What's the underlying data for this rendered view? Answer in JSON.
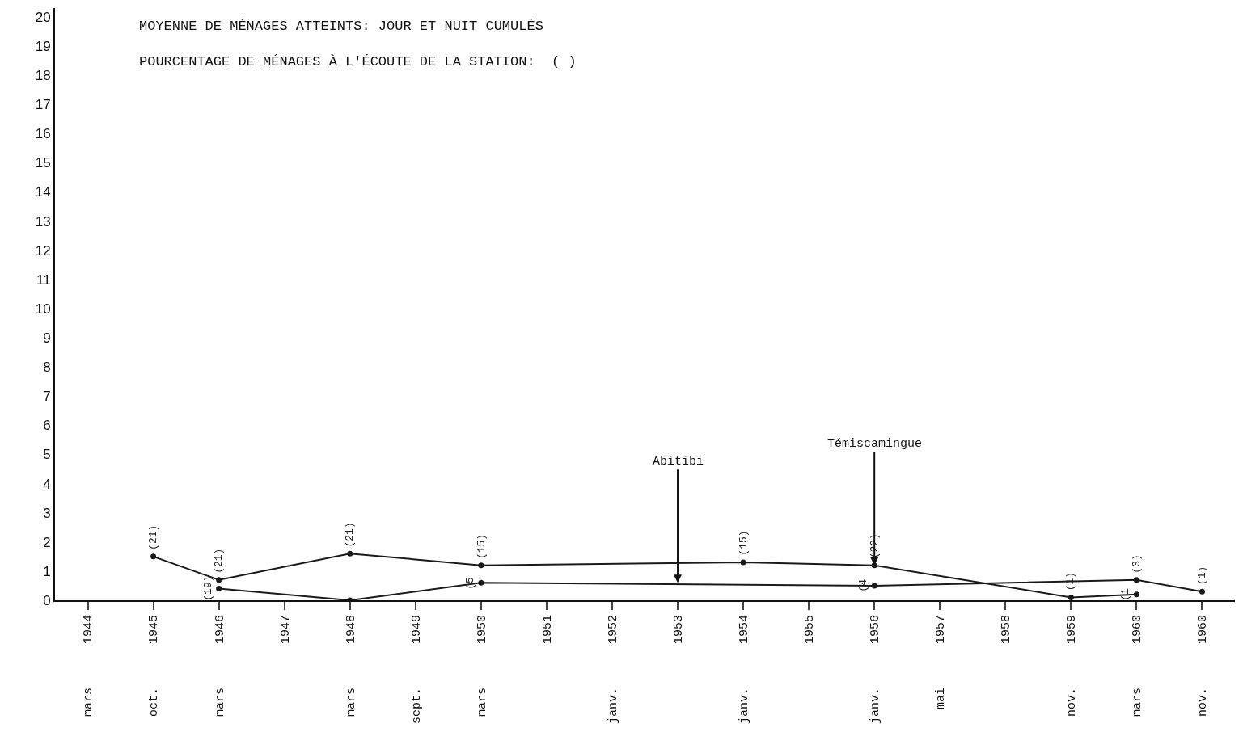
{
  "chart_data": {
    "type": "line",
    "title": "MOYENNE DE MÉNAGES ATTEINTS: JOUR ET NUIT CUMULÉS",
    "subtitle": "POURCENTAGE DE MÉNAGES À L'ÉCOUTE DE LA STATION:  ( )",
    "categories": [
      "mars 1944",
      "oct. 1945",
      "mars 1946",
      "1947",
      "mars 1948",
      "sept. 1949",
      "mars 1950",
      "1951",
      "janv. 1952",
      "1953",
      "janv. 1954",
      "1955",
      "janv. 1956",
      "mai 1957",
      "1958",
      "nov. 1959",
      "mars 1960",
      "nov. 1960"
    ],
    "series": [
      {
        "color": "#1a1a1a",
        "values": [
          null,
          1.5,
          0.7,
          null,
          1.6,
          null,
          1.2,
          null,
          null,
          null,
          1.3,
          null,
          1.2,
          null,
          null,
          0.1,
          0.2,
          null
        ]
      },
      {
        "color": "#1a1a1a",
        "values": [
          null,
          null,
          0.4,
          null,
          0.0,
          null,
          0.6,
          null,
          null,
          null,
          null,
          null,
          0.5,
          null,
          null,
          null,
          0.7,
          0.3
        ]
      }
    ],
    "annotations": [
      {
        "text": "(21)",
        "x": "oct. 1945",
        "y": 1.5
      },
      {
        "text": "(21)",
        "x": "mars 1946",
        "y": 0.7
      },
      {
        "text": "(21)",
        "x": "mars 1948",
        "y": 1.6
      },
      {
        "text": "(15)",
        "x": "mars 1950",
        "y": 1.2
      },
      {
        "text": "(15)",
        "x": "janv. 1954",
        "y": 1.3
      },
      {
        "text": "(22)",
        "x": "janv. 1956",
        "y": 1.2
      },
      {
        "text": "(1)",
        "x": "nov. 1959",
        "y": 0.1
      },
      {
        "text": "(1",
        "x": "mars 1960",
        "y": 0.2
      },
      {
        "text": "(19)",
        "x": "mars 1946",
        "y": 0.4
      },
      {
        "text": "(5",
        "x": "mars 1950",
        "y": 0.6
      },
      {
        "text": "(4",
        "x": "janv. 1956",
        "y": 0.5
      },
      {
        "text": "(3)",
        "x": "mars 1960",
        "y": 0.7
      },
      {
        "text": "(1)",
        "x": "nov. 1960",
        "y": 0.3
      },
      {
        "text": "Abitibi",
        "x": "1953",
        "y": 0.6
      },
      {
        "text": "Témiscamingue",
        "x": "janv. 1956",
        "y": 1.2
      }
    ],
    "ylim": [
      0,
      20.3
    ],
    "yticks": [
      0,
      1,
      2,
      3,
      4,
      5,
      6,
      7,
      8,
      9,
      10,
      11,
      12,
      13,
      14,
      15,
      16,
      17,
      18,
      19,
      20
    ],
    "marker": "circle",
    "line_style": "solid"
  }
}
